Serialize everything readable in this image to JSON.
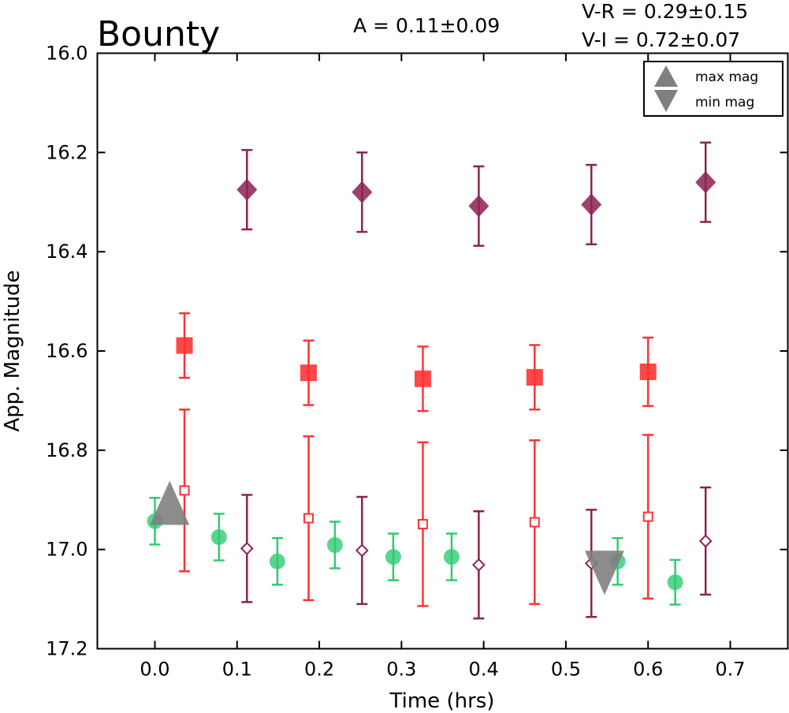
{
  "chart_data": {
    "type": "scatter",
    "title": "Bounty",
    "stats": {
      "amplitude": "A  = 0.11±0.09",
      "v_minus_r": "V-R = 0.29±0.15",
      "v_minus_i": "V-I  = 0.72±0.07"
    },
    "xlabel": "Time (hrs)",
    "ylabel": "App. Magnitude",
    "xlim": [
      -0.07,
      0.77
    ],
    "ylim": [
      17.2,
      16.0
    ],
    "y_inverted": true,
    "xticks": [
      "0.0",
      "0.1",
      "0.2",
      "0.3",
      "0.4",
      "0.5",
      "0.6",
      "0.7"
    ],
    "yticks": [
      "16.0",
      "16.2",
      "16.4",
      "16.6",
      "16.8",
      "17.0",
      "17.2"
    ],
    "legend": {
      "placement": "top-right",
      "entries": [
        {
          "label": "max mag",
          "marker": "triangle-up",
          "color": "#7f7f7f"
        },
        {
          "label": "min mag",
          "marker": "triangle-down",
          "color": "#7f7f7f"
        }
      ]
    },
    "series": [
      {
        "marker": "circle-filled",
        "color": "#2ecc71",
        "points": [
          {
            "x": 0.0,
            "y": 16.943,
            "err": 0.047
          },
          {
            "x": 0.078,
            "y": 16.975,
            "err": 0.047
          },
          {
            "x": 0.149,
            "y": 17.024,
            "err": 0.047
          },
          {
            "x": 0.219,
            "y": 16.991,
            "err": 0.047
          },
          {
            "x": 0.29,
            "y": 17.015,
            "err": 0.047
          },
          {
            "x": 0.361,
            "y": 17.015,
            "err": 0.047
          },
          {
            "x": 0.563,
            "y": 17.024,
            "err": 0.047
          },
          {
            "x": 0.633,
            "y": 17.066,
            "err": 0.045
          }
        ]
      },
      {
        "marker": "square-filled",
        "color": "#ff3333",
        "points": [
          {
            "x": 0.036,
            "y": 16.589,
            "err": 0.065
          },
          {
            "x": 0.187,
            "y": 16.644,
            "err": 0.065
          },
          {
            "x": 0.326,
            "y": 16.656,
            "err": 0.065
          },
          {
            "x": 0.462,
            "y": 16.653,
            "err": 0.065
          },
          {
            "x": 0.6,
            "y": 16.642,
            "err": 0.069
          }
        ]
      },
      {
        "marker": "square-open",
        "color": "#ff3333",
        "points": [
          {
            "x": 0.036,
            "y": 16.881,
            "err": 0.163
          },
          {
            "x": 0.187,
            "y": 16.937,
            "err": 0.165
          },
          {
            "x": 0.326,
            "y": 16.949,
            "err": 0.165
          },
          {
            "x": 0.462,
            "y": 16.945,
            "err": 0.165
          },
          {
            "x": 0.6,
            "y": 16.934,
            "err": 0.165
          }
        ]
      },
      {
        "marker": "diamond-filled",
        "color": "#8b2252",
        "points": [
          {
            "x": 0.112,
            "y": 16.275,
            "err": 0.08
          },
          {
            "x": 0.252,
            "y": 16.28,
            "err": 0.08
          },
          {
            "x": 0.394,
            "y": 16.308,
            "err": 0.08
          },
          {
            "x": 0.531,
            "y": 16.305,
            "err": 0.08
          },
          {
            "x": 0.67,
            "y": 16.26,
            "err": 0.08
          }
        ]
      },
      {
        "marker": "diamond-open",
        "color": "#8b2252",
        "points": [
          {
            "x": 0.112,
            "y": 16.998,
            "err": 0.108
          },
          {
            "x": 0.252,
            "y": 17.002,
            "err": 0.108
          },
          {
            "x": 0.394,
            "y": 17.031,
            "err": 0.108
          },
          {
            "x": 0.531,
            "y": 17.028,
            "err": 0.108
          },
          {
            "x": 0.67,
            "y": 16.983,
            "err": 0.108
          }
        ]
      }
    ],
    "max_mag": {
      "x": 0.018,
      "y": 16.925,
      "marker": "triangle-up",
      "color": "#7f7f7f"
    },
    "min_mag": {
      "x": 0.547,
      "y": 17.02,
      "marker": "triangle-down",
      "color": "#7f7f7f"
    }
  }
}
